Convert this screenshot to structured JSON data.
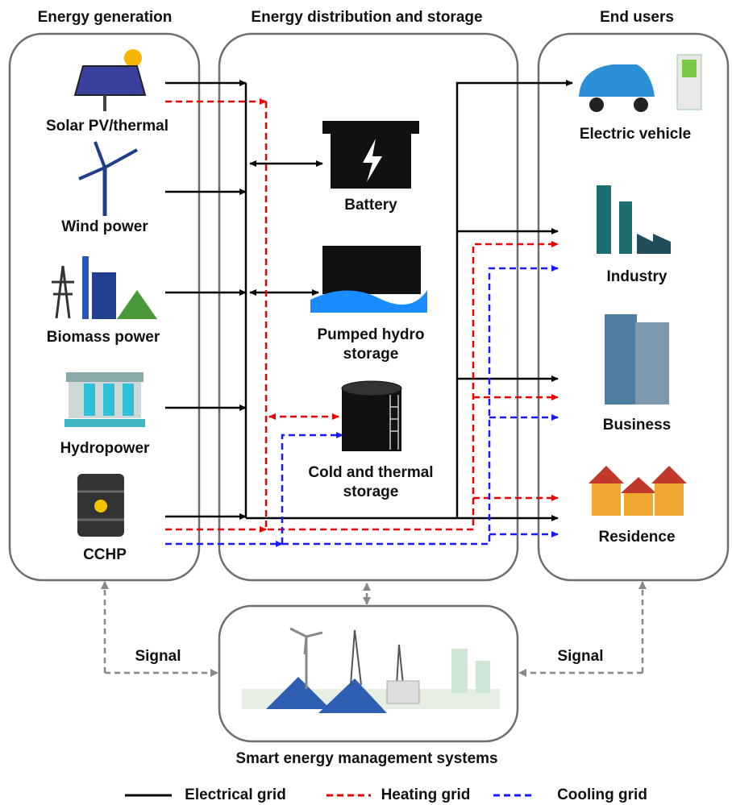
{
  "columns": {
    "generation": {
      "title": "Energy generation",
      "nodes": [
        "Solar PV/thermal",
        "Wind power",
        "Biomass power",
        "Hydropower",
        "CCHP"
      ]
    },
    "distribution": {
      "title": "Energy distribution and storage",
      "nodes": [
        [
          "Battery"
        ],
        [
          "Pumped hydro",
          "storage"
        ],
        [
          "Cold and thermal",
          "storage"
        ]
      ]
    },
    "end_users": {
      "title": "End users",
      "nodes": [
        "Electric vehicle",
        "Industry",
        "Business",
        "Residence"
      ]
    }
  },
  "signal_labels": [
    "Signal",
    "Signal"
  ],
  "management": "Smart energy management systems",
  "legend": [
    "Electrical grid",
    "Heating grid",
    "Cooling grid"
  ]
}
